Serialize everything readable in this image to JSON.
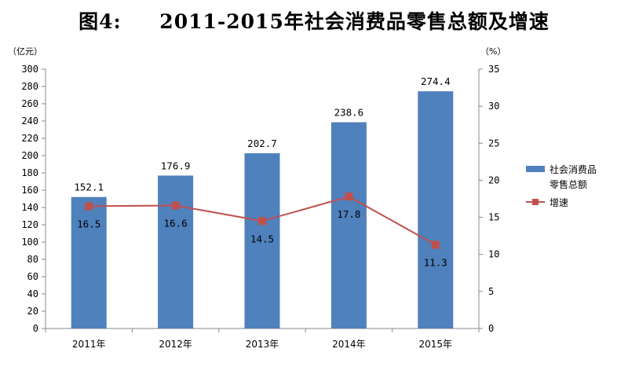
{
  "title": "图4:     2011-2015年社会消费品零售总额及增速",
  "chart_data": {
    "type": "bar",
    "categories": [
      "2011年",
      "2012年",
      "2013年",
      "2014年",
      "2015年"
    ],
    "series": [
      {
        "name": "社会消费品零售总额",
        "kind": "bar",
        "axis": "left",
        "values": [
          152.1,
          176.9,
          202.7,
          238.6,
          274.4
        ],
        "labels": [
          "152.1",
          "176.9",
          "202.7",
          "238.6",
          "274.4"
        ],
        "color": "#4f81bd"
      },
      {
        "name": "增速",
        "kind": "line",
        "axis": "right",
        "values": [
          16.5,
          16.6,
          14.5,
          17.8,
          11.3
        ],
        "labels": [
          "16.5",
          "16.6",
          "14.5",
          "17.8",
          "11.3"
        ],
        "color": "#c0504d"
      }
    ],
    "y_left": {
      "unit": "（亿元）",
      "min": 0,
      "max": 300,
      "step": 20
    },
    "y_right": {
      "unit": "（%）",
      "min": 0,
      "max": 35,
      "step": 5
    },
    "legend": {
      "position": "right",
      "entries": [
        {
          "lines": [
            "社会消费品",
            "零售总额"
          ],
          "marker": "bar"
        },
        {
          "lines": [
            "增速"
          ],
          "marker": "line"
        }
      ]
    },
    "grid": false
  }
}
